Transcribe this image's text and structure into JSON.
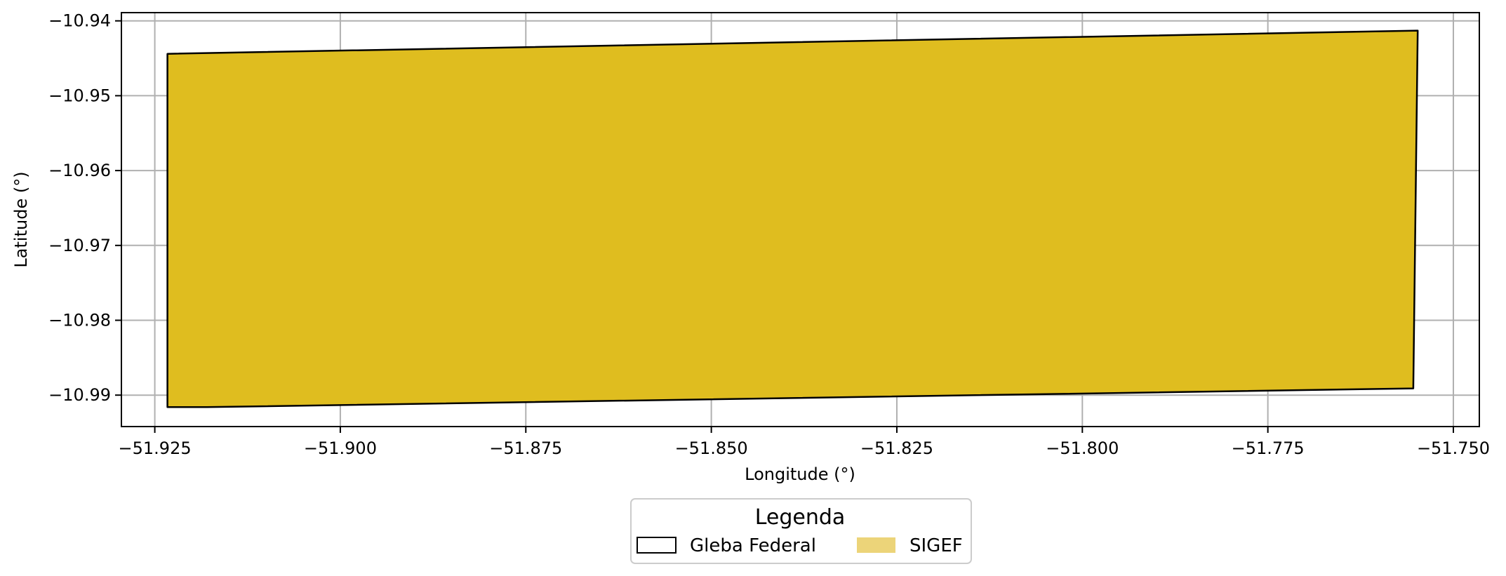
{
  "chart_data": {
    "type": "map",
    "title": "",
    "xlabel": "Longitude (°)",
    "ylabel": "Latitude (°)",
    "xlim": [
      -51.9295,
      -51.7465
    ],
    "ylim": [
      -10.9942,
      -10.9389
    ],
    "x_ticks": [
      -51.925,
      -51.9,
      -51.875,
      -51.85,
      -51.825,
      -51.8,
      -51.775,
      -51.75
    ],
    "x_tick_labels": [
      "−51.925",
      "−51.900",
      "−51.875",
      "−51.850",
      "−51.825",
      "−51.800",
      "−51.775",
      "−51.750"
    ],
    "y_ticks": [
      -10.94,
      -10.95,
      -10.96,
      -10.97,
      -10.98,
      -10.99
    ],
    "y_tick_labels": [
      "−10.94",
      "−10.95",
      "−10.96",
      "−10.97",
      "−10.98",
      "−10.99"
    ],
    "grid": true,
    "polygons": [
      {
        "layer": "SIGEF",
        "fill": "#dfbd1f",
        "stroke": "#000000",
        "coordinates": [
          [
            -51.9233,
            -10.9444
          ],
          [
            -51.7548,
            -10.9413
          ],
          [
            -51.7554,
            -10.9891
          ],
          [
            -51.918,
            -10.9916
          ],
          [
            -51.9233,
            -10.9916
          ]
        ]
      }
    ],
    "legend": {
      "title": "Legenda",
      "placement": "bottom-center",
      "entries": [
        {
          "label": "Gleba Federal",
          "style": "outline",
          "color": "#000000"
        },
        {
          "label": "SIGEF",
          "style": "fill",
          "color": "#ecd479"
        }
      ]
    }
  }
}
